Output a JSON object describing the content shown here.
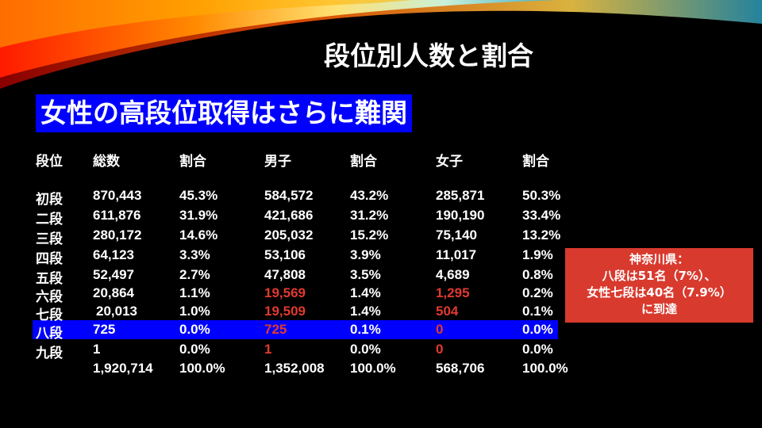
{
  "title": "段位別人数と割合",
  "subtitle": "女性の高段位取得はさらに難関",
  "colors": {
    "highlight": "#0000ff",
    "emphasis_red": "#e03a2f",
    "note_bg": "#d93a2e"
  },
  "table": {
    "headers": [
      "段位",
      "総数",
      "割合",
      "男子",
      "割合",
      "女子",
      "割合"
    ],
    "rows": [
      {
        "cells": [
          "初段",
          "870,443",
          "45.3%",
          "584,572",
          "43.2%",
          "285,871",
          "50.3%"
        ]
      },
      {
        "cells": [
          "二段",
          "611,876",
          "31.9%",
          "421,686",
          "31.2%",
          "190,190",
          "33.4%"
        ]
      },
      {
        "cells": [
          "三段",
          "280,172",
          "14.6%",
          "205,032",
          "15.2%",
          "75,140",
          "13.2%"
        ]
      },
      {
        "cells": [
          "四段",
          "64,123",
          "3.3%",
          "53,106",
          "3.9%",
          "11,017",
          "1.9%"
        ]
      },
      {
        "cells": [
          "五段",
          "52,497",
          "2.7%",
          "47,808",
          "3.5%",
          "4,689",
          "0.8%"
        ]
      },
      {
        "cells": [
          "六段",
          "20,864",
          "1.1%",
          "19,569",
          "1.4%",
          "1,295",
          "0.2%"
        ]
      },
      {
        "cells": [
          "七段",
          "20,013",
          "1.0%",
          "19,509",
          "1.4%",
          "504",
          "0.1%"
        ]
      },
      {
        "cells": [
          "八段",
          "725",
          "0.0%",
          "725",
          "0.1%",
          "0",
          "0.0%"
        ]
      },
      {
        "cells": [
          "九段",
          "1",
          "0.0%",
          "1",
          "0.0%",
          "0",
          "0.0%"
        ]
      },
      {
        "cells": [
          "",
          "1,920,714",
          "100.0%",
          "1,352,008",
          "100.0%",
          "568,706",
          "100.0%"
        ]
      }
    ]
  },
  "note": {
    "lines": [
      "神奈川県：",
      "八段は51名（7%）、",
      "女性七段は40名（7.9%）",
      "に到達"
    ]
  }
}
